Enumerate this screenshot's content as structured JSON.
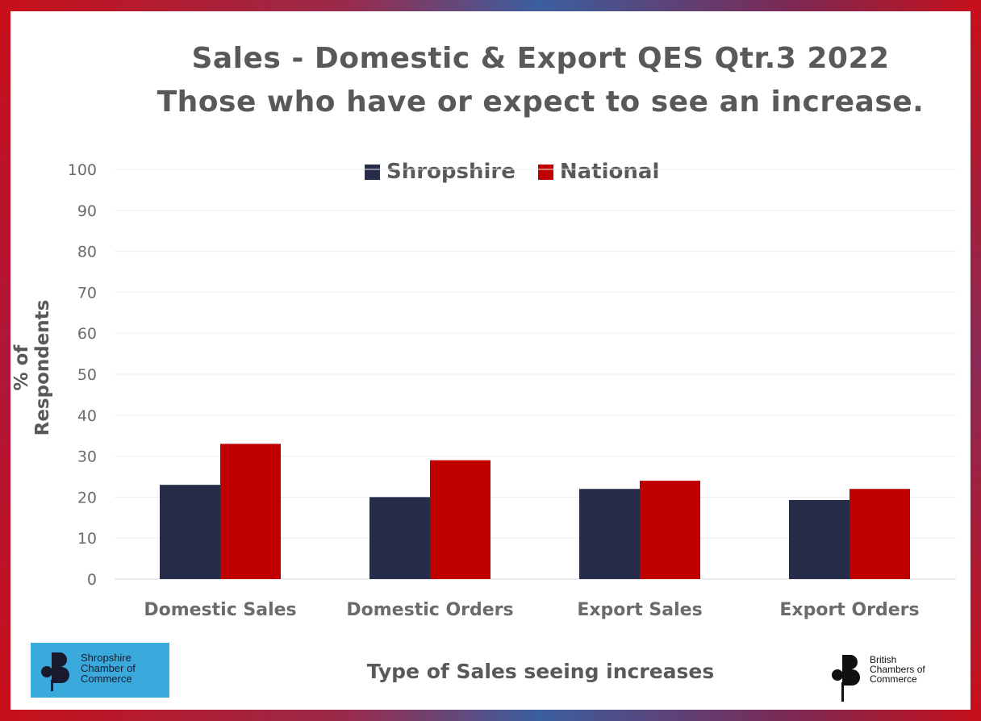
{
  "chart_data": {
    "type": "bar",
    "title": [
      "Sales - Domestic & Export QES Qtr.3 2022",
      "Those who have or expect to see an increase."
    ],
    "xlabel": "Type of Sales seeing increases",
    "ylabel": "% of Respondents",
    "categories": [
      "Domestic Sales",
      "Domestic Orders",
      "Export Sales",
      "Export Orders"
    ],
    "series": [
      {
        "name": "Shropshire",
        "color": "#272c48",
        "values": [
          23,
          20,
          22,
          19.3
        ]
      },
      {
        "name": "National",
        "color": "#c00000",
        "values": [
          33,
          29,
          24,
          22
        ]
      }
    ],
    "ylim": [
      0,
      100
    ],
    "yticks": [
      "0",
      "10",
      "20",
      "30",
      "40",
      "50",
      "60",
      "70",
      "80",
      "90",
      "100"
    ],
    "grid": true,
    "legend": "top-center"
  },
  "logos": {
    "left": {
      "text": "Shropshire\nChamber of\nCommerce",
      "color": "#3aa9dc"
    },
    "right": {
      "text": "British\nChambers of\nCommerce"
    }
  }
}
